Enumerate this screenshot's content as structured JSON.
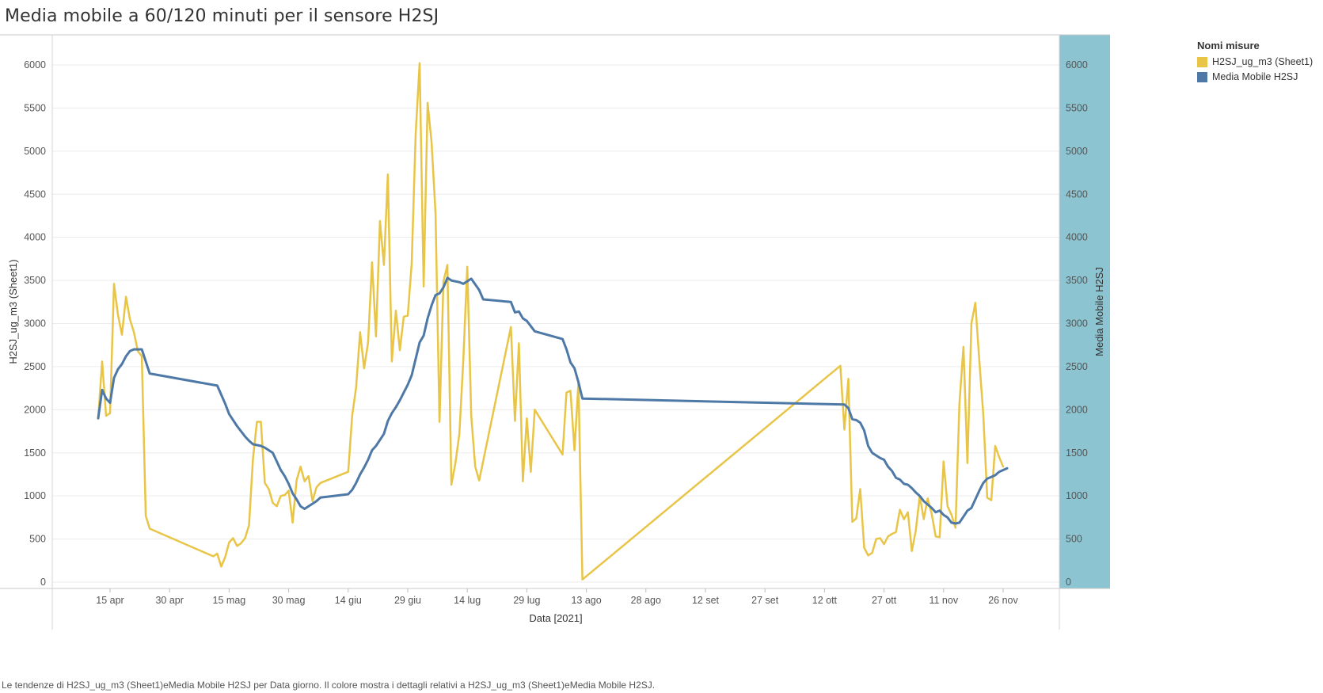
{
  "title": "Media mobile a 60/120 minuti per il sensore H2SJ",
  "caption": "Le tendenze di H2SJ_ug_m3 (Sheet1)eMedia Mobile H2SJ per Data giorno. Il colore mostra i dettagli relativi a H2SJ_ug_m3 (Sheet1)eMedia Mobile H2SJ.",
  "legend": {
    "title": "Nomi misure",
    "items": [
      {
        "label": "H2SJ_ug_m3 (Sheet1)",
        "color": "#E8C547"
      },
      {
        "label": "Media Mobile H2SJ",
        "color": "#4E79A7"
      }
    ]
  },
  "chart_data": {
    "type": "line",
    "xlabel": "Data [2021]",
    "ylabel_left": "H2SJ_ug_m3 (Sheet1)",
    "ylabel_right": "Media Mobile H2SJ",
    "ylim": [
      0,
      6000
    ],
    "yticks": [
      0,
      500,
      1000,
      1500,
      2000,
      2500,
      3000,
      3500,
      4000,
      4500,
      5000,
      5500,
      6000
    ],
    "xlim": [
      "2021-04-02",
      "2021-12-08"
    ],
    "xticks": [
      {
        "date": "2021-04-15",
        "label": "15 apr"
      },
      {
        "date": "2021-04-30",
        "label": "30 apr"
      },
      {
        "date": "2021-05-15",
        "label": "15 mag"
      },
      {
        "date": "2021-05-30",
        "label": "30 mag"
      },
      {
        "date": "2021-06-14",
        "label": "14 giu"
      },
      {
        "date": "2021-06-29",
        "label": "29 giu"
      },
      {
        "date": "2021-07-14",
        "label": "14 lug"
      },
      {
        "date": "2021-07-29",
        "label": "29 lug"
      },
      {
        "date": "2021-08-13",
        "label": "13 ago"
      },
      {
        "date": "2021-08-28",
        "label": "28 ago"
      },
      {
        "date": "2021-09-12",
        "label": "12 set"
      },
      {
        "date": "2021-09-27",
        "label": "27 set"
      },
      {
        "date": "2021-10-12",
        "label": "12 ott"
      },
      {
        "date": "2021-10-27",
        "label": "27 ott"
      },
      {
        "date": "2021-11-11",
        "label": "11 nov"
      },
      {
        "date": "2021-11-26",
        "label": "26 nov"
      }
    ],
    "grid": true,
    "legend_position": "right",
    "series": [
      {
        "name": "H2SJ_ug_m3 (Sheet1)",
        "color": "#E8C547",
        "points": [
          [
            "2021-04-12",
            1900
          ],
          [
            "2021-04-13",
            2560
          ],
          [
            "2021-04-14",
            1930
          ],
          [
            "2021-04-15",
            1960
          ],
          [
            "2021-04-16",
            3460
          ],
          [
            "2021-04-17",
            3100
          ],
          [
            "2021-04-18",
            2870
          ],
          [
            "2021-04-19",
            3310
          ],
          [
            "2021-04-20",
            3050
          ],
          [
            "2021-04-21",
            2900
          ],
          [
            "2021-04-22",
            2680
          ],
          [
            "2021-04-23",
            2620
          ],
          [
            "2021-04-24",
            770
          ],
          [
            "2021-04-25",
            620
          ],
          [
            "2021-05-11",
            300
          ],
          [
            "2021-05-12",
            330
          ],
          [
            "2021-05-13",
            180
          ],
          [
            "2021-05-14",
            290
          ],
          [
            "2021-05-15",
            460
          ],
          [
            "2021-05-16",
            510
          ],
          [
            "2021-05-17",
            420
          ],
          [
            "2021-05-18",
            450
          ],
          [
            "2021-05-19",
            510
          ],
          [
            "2021-05-20",
            660
          ],
          [
            "2021-05-21",
            1430
          ],
          [
            "2021-05-22",
            1860
          ],
          [
            "2021-05-23",
            1860
          ],
          [
            "2021-05-24",
            1150
          ],
          [
            "2021-05-25",
            1080
          ],
          [
            "2021-05-26",
            920
          ],
          [
            "2021-05-27",
            880
          ],
          [
            "2021-05-28",
            1000
          ],
          [
            "2021-05-29",
            1010
          ],
          [
            "2021-05-30",
            1060
          ],
          [
            "2021-05-31",
            690
          ],
          [
            "2021-06-01",
            1180
          ],
          [
            "2021-06-02",
            1340
          ],
          [
            "2021-06-03",
            1170
          ],
          [
            "2021-06-04",
            1230
          ],
          [
            "2021-06-05",
            940
          ],
          [
            "2021-06-06",
            1100
          ],
          [
            "2021-06-07",
            1150
          ],
          [
            "2021-06-14",
            1280
          ],
          [
            "2021-06-15",
            1930
          ],
          [
            "2021-06-16",
            2260
          ],
          [
            "2021-06-17",
            2900
          ],
          [
            "2021-06-18",
            2480
          ],
          [
            "2021-06-19",
            2780
          ],
          [
            "2021-06-20",
            3710
          ],
          [
            "2021-06-21",
            2850
          ],
          [
            "2021-06-22",
            4190
          ],
          [
            "2021-06-23",
            3680
          ],
          [
            "2021-06-24",
            4730
          ],
          [
            "2021-06-25",
            2560
          ],
          [
            "2021-06-26",
            3150
          ],
          [
            "2021-06-27",
            2690
          ],
          [
            "2021-06-28",
            3080
          ],
          [
            "2021-06-29",
            3090
          ],
          [
            "2021-06-30",
            3700
          ],
          [
            "2021-07-01",
            5200
          ],
          [
            "2021-07-02",
            6020
          ],
          [
            "2021-07-03",
            3430
          ],
          [
            "2021-07-04",
            5560
          ],
          [
            "2021-07-05",
            5100
          ],
          [
            "2021-07-06",
            4280
          ],
          [
            "2021-07-07",
            1860
          ],
          [
            "2021-07-08",
            3490
          ],
          [
            "2021-07-09",
            3680
          ],
          [
            "2021-07-10",
            1130
          ],
          [
            "2021-07-11",
            1380
          ],
          [
            "2021-07-12",
            1720
          ],
          [
            "2021-07-13",
            2580
          ],
          [
            "2021-07-14",
            3660
          ],
          [
            "2021-07-15",
            1930
          ],
          [
            "2021-07-16",
            1340
          ],
          [
            "2021-07-17",
            1180
          ],
          [
            "2021-07-25",
            2960
          ],
          [
            "2021-07-26",
            1870
          ],
          [
            "2021-07-27",
            2770
          ],
          [
            "2021-07-28",
            1170
          ],
          [
            "2021-07-29",
            1900
          ],
          [
            "2021-07-30",
            1280
          ],
          [
            "2021-07-31",
            2000
          ],
          [
            "2021-08-07",
            1480
          ],
          [
            "2021-08-08",
            2200
          ],
          [
            "2021-08-09",
            2220
          ],
          [
            "2021-08-10",
            1530
          ],
          [
            "2021-08-11",
            2320
          ],
          [
            "2021-08-12",
            30
          ],
          [
            "2021-10-16",
            2510
          ],
          [
            "2021-10-17",
            1770
          ],
          [
            "2021-10-18",
            2360
          ],
          [
            "2021-10-19",
            700
          ],
          [
            "2021-10-20",
            740
          ],
          [
            "2021-10-21",
            1080
          ],
          [
            "2021-10-22",
            400
          ],
          [
            "2021-10-23",
            310
          ],
          [
            "2021-10-24",
            340
          ],
          [
            "2021-10-25",
            500
          ],
          [
            "2021-10-26",
            510
          ],
          [
            "2021-10-27",
            440
          ],
          [
            "2021-10-28",
            530
          ],
          [
            "2021-10-29",
            560
          ],
          [
            "2021-10-30",
            580
          ],
          [
            "2021-10-31",
            840
          ],
          [
            "2021-11-01",
            730
          ],
          [
            "2021-11-02",
            810
          ],
          [
            "2021-11-03",
            360
          ],
          [
            "2021-11-04",
            600
          ],
          [
            "2021-11-05",
            1000
          ],
          [
            "2021-11-06",
            730
          ],
          [
            "2021-11-07",
            970
          ],
          [
            "2021-11-08",
            790
          ],
          [
            "2021-11-09",
            530
          ],
          [
            "2021-11-10",
            520
          ],
          [
            "2021-11-11",
            1400
          ],
          [
            "2021-11-12",
            880
          ],
          [
            "2021-11-13",
            780
          ],
          [
            "2021-11-14",
            630
          ],
          [
            "2021-11-15",
            2070
          ],
          [
            "2021-11-16",
            2730
          ],
          [
            "2021-11-17",
            1380
          ],
          [
            "2021-11-18",
            3000
          ],
          [
            "2021-11-19",
            3240
          ],
          [
            "2021-11-20",
            2570
          ],
          [
            "2021-11-21",
            1950
          ],
          [
            "2021-11-22",
            980
          ],
          [
            "2021-11-23",
            950
          ],
          [
            "2021-11-24",
            1580
          ],
          [
            "2021-11-25",
            1450
          ],
          [
            "2021-11-26",
            1340
          ]
        ]
      },
      {
        "name": "Media Mobile H2SJ",
        "color": "#4E79A7",
        "points": [
          [
            "2021-04-12",
            1900
          ],
          [
            "2021-04-13",
            2230
          ],
          [
            "2021-04-14",
            2130
          ],
          [
            "2021-04-15",
            2080
          ],
          [
            "2021-04-16",
            2370
          ],
          [
            "2021-04-17",
            2470
          ],
          [
            "2021-04-18",
            2530
          ],
          [
            "2021-04-19",
            2620
          ],
          [
            "2021-04-20",
            2680
          ],
          [
            "2021-04-21",
            2700
          ],
          [
            "2021-04-23",
            2700
          ],
          [
            "2021-04-25",
            2420
          ],
          [
            "2021-05-12",
            2280
          ],
          [
            "2021-05-14",
            2070
          ],
          [
            "2021-05-15",
            1950
          ],
          [
            "2021-05-17",
            1810
          ],
          [
            "2021-05-19",
            1690
          ],
          [
            "2021-05-20",
            1640
          ],
          [
            "2021-05-21",
            1600
          ],
          [
            "2021-05-23",
            1580
          ],
          [
            "2021-05-24",
            1560
          ],
          [
            "2021-05-26",
            1500
          ],
          [
            "2021-05-27",
            1400
          ],
          [
            "2021-05-28",
            1300
          ],
          [
            "2021-05-29",
            1230
          ],
          [
            "2021-05-30",
            1140
          ],
          [
            "2021-05-31",
            1030
          ],
          [
            "2021-06-01",
            960
          ],
          [
            "2021-06-02",
            880
          ],
          [
            "2021-06-03",
            850
          ],
          [
            "2021-06-04",
            880
          ],
          [
            "2021-06-05",
            910
          ],
          [
            "2021-06-06",
            940
          ],
          [
            "2021-06-07",
            980
          ],
          [
            "2021-06-14",
            1020
          ],
          [
            "2021-06-15",
            1070
          ],
          [
            "2021-06-16",
            1150
          ],
          [
            "2021-06-17",
            1250
          ],
          [
            "2021-06-18",
            1330
          ],
          [
            "2021-06-19",
            1420
          ],
          [
            "2021-06-20",
            1530
          ],
          [
            "2021-06-21",
            1580
          ],
          [
            "2021-06-22",
            1650
          ],
          [
            "2021-06-23",
            1720
          ],
          [
            "2021-06-24",
            1870
          ],
          [
            "2021-06-25",
            1960
          ],
          [
            "2021-06-26",
            2030
          ],
          [
            "2021-06-27",
            2110
          ],
          [
            "2021-06-28",
            2200
          ],
          [
            "2021-06-29",
            2290
          ],
          [
            "2021-06-30",
            2400
          ],
          [
            "2021-07-01",
            2590
          ],
          [
            "2021-07-02",
            2780
          ],
          [
            "2021-07-03",
            2860
          ],
          [
            "2021-07-04",
            3060
          ],
          [
            "2021-07-05",
            3210
          ],
          [
            "2021-07-06",
            3330
          ],
          [
            "2021-07-07",
            3350
          ],
          [
            "2021-07-08",
            3420
          ],
          [
            "2021-07-09",
            3530
          ],
          [
            "2021-07-10",
            3500
          ],
          [
            "2021-07-12",
            3480
          ],
          [
            "2021-07-13",
            3460
          ],
          [
            "2021-07-15",
            3520
          ],
          [
            "2021-07-17",
            3390
          ],
          [
            "2021-07-18",
            3280
          ],
          [
            "2021-07-25",
            3250
          ],
          [
            "2021-07-26",
            3130
          ],
          [
            "2021-07-27",
            3140
          ],
          [
            "2021-07-28",
            3060
          ],
          [
            "2021-07-29",
            3030
          ],
          [
            "2021-07-31",
            2910
          ],
          [
            "2021-08-07",
            2820
          ],
          [
            "2021-08-08",
            2700
          ],
          [
            "2021-08-09",
            2550
          ],
          [
            "2021-08-10",
            2480
          ],
          [
            "2021-08-11",
            2320
          ],
          [
            "2021-08-12",
            2130
          ],
          [
            "2021-10-17",
            2060
          ],
          [
            "2021-10-18",
            2020
          ],
          [
            "2021-10-19",
            1890
          ],
          [
            "2021-10-20",
            1880
          ],
          [
            "2021-10-21",
            1850
          ],
          [
            "2021-10-22",
            1760
          ],
          [
            "2021-10-23",
            1580
          ],
          [
            "2021-10-24",
            1500
          ],
          [
            "2021-10-25",
            1470
          ],
          [
            "2021-10-26",
            1440
          ],
          [
            "2021-10-27",
            1420
          ],
          [
            "2021-10-28",
            1340
          ],
          [
            "2021-10-29",
            1290
          ],
          [
            "2021-10-30",
            1210
          ],
          [
            "2021-10-31",
            1190
          ],
          [
            "2021-11-01",
            1140
          ],
          [
            "2021-11-02",
            1130
          ],
          [
            "2021-11-03",
            1090
          ],
          [
            "2021-11-04",
            1040
          ],
          [
            "2021-11-05",
            1000
          ],
          [
            "2021-11-06",
            940
          ],
          [
            "2021-11-07",
            900
          ],
          [
            "2021-11-08",
            860
          ],
          [
            "2021-11-09",
            810
          ],
          [
            "2021-11-10",
            830
          ],
          [
            "2021-11-11",
            780
          ],
          [
            "2021-11-12",
            750
          ],
          [
            "2021-11-13",
            690
          ],
          [
            "2021-11-14",
            680
          ],
          [
            "2021-11-15",
            690
          ],
          [
            "2021-11-16",
            760
          ],
          [
            "2021-11-17",
            830
          ],
          [
            "2021-11-18",
            860
          ],
          [
            "2021-11-19",
            960
          ],
          [
            "2021-11-20",
            1060
          ],
          [
            "2021-11-21",
            1150
          ],
          [
            "2021-11-22",
            1200
          ],
          [
            "2021-11-23",
            1220
          ],
          [
            "2021-11-24",
            1240
          ],
          [
            "2021-11-25",
            1280
          ],
          [
            "2021-11-26",
            1300
          ],
          [
            "2021-11-27",
            1320
          ]
        ]
      }
    ]
  }
}
